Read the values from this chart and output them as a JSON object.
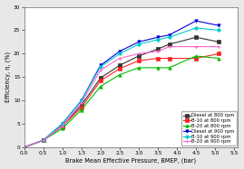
{
  "title": "",
  "xlabel": "Brake Mean Effective Pressure, BMEP, (bar)",
  "ylabel": "Efficiency, η, (%)",
  "xlim": [
    0.0,
    5.6
  ],
  "ylim": [
    0,
    30
  ],
  "xticks": [
    0.0,
    0.5,
    1.0,
    1.5,
    2.0,
    2.5,
    3.0,
    3.5,
    4.0,
    4.5,
    5.0,
    5.5
  ],
  "yticks": [
    0,
    5,
    10,
    15,
    20,
    25,
    30
  ],
  "series": [
    {
      "label": "Diesel at 800 rpm",
      "color": "#333333",
      "marker": "s",
      "markersize": 2.5,
      "linewidth": 0.8,
      "x": [
        0.0,
        0.5,
        1.0,
        1.5,
        2.0,
        2.5,
        3.0,
        3.5,
        3.8,
        4.5,
        5.1
      ],
      "y": [
        0.0,
        1.5,
        4.5,
        9.0,
        14.8,
        17.5,
        19.5,
        21.0,
        22.0,
        23.5,
        22.5
      ]
    },
    {
      "label": "B-10 at 800 rpm",
      "color": "#ff2222",
      "marker": "s",
      "markersize": 2.5,
      "linewidth": 0.8,
      "x": [
        0.0,
        0.5,
        1.0,
        1.5,
        2.0,
        2.5,
        3.0,
        3.5,
        3.8,
        4.5,
        5.1
      ],
      "y": [
        0.0,
        1.5,
        4.5,
        8.5,
        14.2,
        16.8,
        18.5,
        19.0,
        19.0,
        19.0,
        20.0
      ]
    },
    {
      "label": "B-20 at 800 rpm",
      "color": "#00bb00",
      "marker": "^",
      "markersize": 2.5,
      "linewidth": 0.8,
      "x": [
        0.0,
        0.5,
        1.0,
        1.5,
        2.0,
        2.5,
        3.0,
        3.5,
        3.8,
        4.5,
        5.1
      ],
      "y": [
        0.0,
        1.5,
        4.0,
        8.0,
        13.0,
        15.5,
        17.0,
        17.0,
        17.0,
        19.5,
        19.0
      ]
    },
    {
      "label": "Diesel at 900 rpm",
      "color": "#0000dd",
      "marker": "v",
      "markersize": 2.5,
      "linewidth": 0.8,
      "x": [
        0.0,
        0.5,
        1.0,
        1.5,
        2.0,
        2.5,
        3.0,
        3.5,
        3.8,
        4.5,
        5.1
      ],
      "y": [
        0.0,
        1.5,
        5.0,
        10.0,
        17.5,
        20.5,
        22.5,
        23.5,
        24.0,
        27.0,
        26.0
      ]
    },
    {
      "label": "B-10 at 900 rpm",
      "color": "#00cccc",
      "marker": "o",
      "markersize": 2.5,
      "linewidth": 0.8,
      "x": [
        0.0,
        0.5,
        1.0,
        1.5,
        2.0,
        2.5,
        3.0,
        3.5,
        3.8,
        4.5,
        5.1
      ],
      "y": [
        0.0,
        1.5,
        5.0,
        10.0,
        17.2,
        20.0,
        22.0,
        23.0,
        23.5,
        25.5,
        25.0
      ]
    },
    {
      "label": "B-20 at 900 rpm",
      "color": "#ff66cc",
      "marker": "+",
      "markersize": 3.5,
      "linewidth": 0.8,
      "x": [
        0.0,
        0.5,
        1.0,
        1.5,
        2.0,
        2.5,
        3.0,
        3.5,
        3.8,
        4.5,
        5.1
      ],
      "y": [
        0.0,
        1.5,
        4.5,
        9.5,
        16.5,
        19.0,
        20.0,
        20.5,
        21.5,
        21.5,
        21.5
      ]
    }
  ],
  "background_color": "#e8e8e8",
  "plot_bg_color": "#ffffff",
  "legend_fontsize": 3.8,
  "axis_fontsize": 4.8,
  "tick_fontsize": 4.2
}
